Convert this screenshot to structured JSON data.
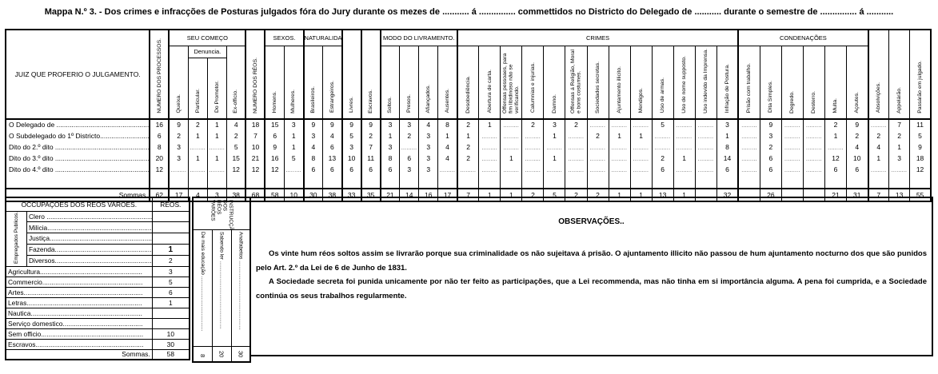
{
  "title": "Mappa N.º 3. - Dos crimes e infracções de Posturas julgados fóra do Jury durante os mezes de  ...........  á  ...............    commettidos no Districto do Delegado de   ...........   durante o semestre de ...............  á  ...........",
  "main_table": {
    "row_header": "JUIZ QUE PROFERIO O JULGAMENTO.",
    "groups": {
      "seu_comeco": "SEU COMEÇO",
      "denuncia": "Denuncia.",
      "sexos": "SEXOS.",
      "naturalidades": "NATURALIDADES.",
      "modo_livramento": "MODO DO LIVRAMENTO.",
      "crimes": "CRIMES",
      "condenacoes": "CONDENAÇÕES"
    },
    "columns": [
      "NUMERO DOS PROCESSOS.",
      "Queixa.",
      "Particular.",
      "Do Promotor.",
      "Ex-officio.",
      "NUMERO DOS RÉOS.",
      "Homens.",
      "Mulheres.",
      "Brasileiros.",
      "Estrangeiros.",
      "Livres.",
      "Escravos.",
      "Soltos.",
      "Presos.",
      "Afiançados.",
      "Ausentes.",
      "Desobediência.",
      "Abertura de carta.",
      "Offensas pessoaes, para fim libidinoso não se verificando.",
      "Calumnias e injurias.",
      "Damno.",
      "Offensas á Religião, Moral e bons costumes.",
      "Sociedades secretas.",
      "Ajuntamento illicito.",
      "Mendigos.",
      "Uso de armas.",
      "Uso de nome supposto.",
      "Uso indevido da Imprensa.",
      "Infração de Postura.",
      "Prisão com trabalho.",
      "Dita Simples.",
      "Degredo.",
      "Desterro.",
      "Multa.",
      "Açoutes.",
      "Absolvições.",
      "Appelárão.",
      "Passárão em julgado."
    ],
    "empty_marker": ".........",
    "rows": [
      {
        "label": "O Delegado de ....................................................",
        "values": [
          "16",
          "9",
          "2",
          "1",
          "4",
          "18",
          "15",
          "3",
          "9",
          "9",
          "9",
          "9",
          "3",
          "3",
          "4",
          "8",
          "2",
          "1",
          "",
          "2",
          "3",
          "2",
          "",
          "",
          "",
          "5",
          "",
          "",
          "3",
          "",
          "9",
          "",
          "",
          "2",
          "9",
          "",
          "7",
          "11"
        ]
      },
      {
        "label": "O Subdelegado do 1º Districto...........................",
        "values": [
          "6",
          "2",
          "1",
          "1",
          "2",
          "7",
          "6",
          "1",
          "3",
          "4",
          "5",
          "2",
          "1",
          "2",
          "3",
          "1",
          "1",
          "",
          "",
          "",
          "1",
          "",
          "2",
          "1",
          "1",
          "",
          "",
          "",
          "1",
          "",
          "3",
          "",
          "",
          "1",
          "2",
          "2",
          "2",
          "5"
        ]
      },
      {
        "label": "Dito do 2.º dito ...................................................",
        "values": [
          "8",
          "3",
          "",
          "",
          "5",
          "10",
          "9",
          "1",
          "4",
          "6",
          "3",
          "7",
          "3",
          "",
          "3",
          "4",
          "2",
          "",
          "",
          "",
          "",
          "",
          "",
          "",
          "",
          "",
          "",
          "",
          "8",
          "",
          "2",
          "",
          "",
          "",
          "4",
          "4",
          "1",
          "9"
        ]
      },
      {
        "label": "Dito do 3.º dito ...................................................",
        "values": [
          "20",
          "3",
          "1",
          "1",
          "15",
          "21",
          "16",
          "5",
          "8",
          "13",
          "10",
          "11",
          "8",
          "6",
          "3",
          "4",
          "2",
          "",
          "1",
          "",
          "1",
          "",
          "",
          "",
          "",
          "2",
          "1",
          "",
          "14",
          "",
          "6",
          "",
          "",
          "12",
          "10",
          "1",
          "3",
          "18"
        ]
      },
      {
        "label": "Dito do 4.º dito ...................................................",
        "values": [
          "12",
          "",
          "",
          "",
          "12",
          "12",
          "12",
          "",
          "6",
          "6",
          "6",
          "6",
          "6",
          "3",
          "3",
          "",
          "",
          "",
          "",
          "",
          "",
          "",
          "",
          "",
          "",
          "6",
          "",
          "",
          "6",
          "",
          "6",
          "",
          "",
          "6",
          "6",
          "",
          "",
          "12"
        ]
      }
    ],
    "sommas": {
      "label": "Sommas",
      "values": [
        "62",
        "17",
        "4",
        "3",
        "38",
        "68",
        "58",
        "10",
        "30",
        "38",
        "33",
        "35",
        "21",
        "14",
        "16",
        "17",
        "7",
        "1",
        "1",
        "2",
        "5",
        "2",
        "2",
        "1",
        "1",
        "13",
        "1",
        "",
        "32",
        "",
        "26",
        "",
        "",
        "21",
        "31",
        "7",
        "13",
        "55"
      ]
    }
  },
  "occupations": {
    "header": "OCCUPAÇÕES DOS RÉOS VARÕES.",
    "reos_header": "RÉOS.",
    "group_label": "Empregados Publicos.",
    "group_rows": [
      {
        "label": "Clero ..........................................................",
        "value": "",
        "bold": false
      },
      {
        "label": "Milicia.........................................................",
        "value": "",
        "bold": false
      },
      {
        "label": "Justiça........................................................",
        "value": "",
        "bold": false
      },
      {
        "label": "Fazenda.....................................................",
        "value": "1",
        "bold": true
      },
      {
        "label": "Diversos.....................................................",
        "value": "2",
        "bold": false
      }
    ],
    "rows": [
      {
        "label": "Agricultura.......................................................",
        "value": "3"
      },
      {
        "label": "Commercio......................................................",
        "value": "5"
      },
      {
        "label": "Artes................................................................",
        "value": "6"
      },
      {
        "label": "Letras..............................................................",
        "value": "1"
      },
      {
        "label": "Nautica............................................................",
        "value": ""
      },
      {
        "label": "Serviço domestico...........................................",
        "value": ""
      },
      {
        "label": "Sem officio.......................................................",
        "value": "10"
      },
      {
        "label": "Escravos..........................................................",
        "value": "30"
      }
    ],
    "sommas_label": "Sommas.",
    "sommas_value": "58"
  },
  "instruction": {
    "header": "INSTRUCÇÃO DOS RÉOS VARÕES",
    "columns": [
      {
        "label": "De mais educação ......................................",
        "value": "8"
      },
      {
        "label": "Sabendo ler ...............................................",
        "value": "20"
      },
      {
        "label": "Analfabetos ................................................",
        "value": "30"
      }
    ]
  },
  "observations": {
    "heading": "OBSERVAÇÕES..",
    "paragraphs": [
      "Os vinte hum réos soltos assim se livrarão porque sua criminalidade os não sujeitava á prisão. O ajuntamento illicito não passou de hum ajuntamento nocturno dos que são punidos pelo Art. 2.º da Lei de 6 de Junho de 1831.",
      "A Sociedade secreta foi punida unicamente por não ter feito as participações, que a Lei recommenda, mas não tinha em si importância alguma. A pena foi cumprida, e a Sociedade continúa os seus trabalhos regularmente."
    ]
  }
}
